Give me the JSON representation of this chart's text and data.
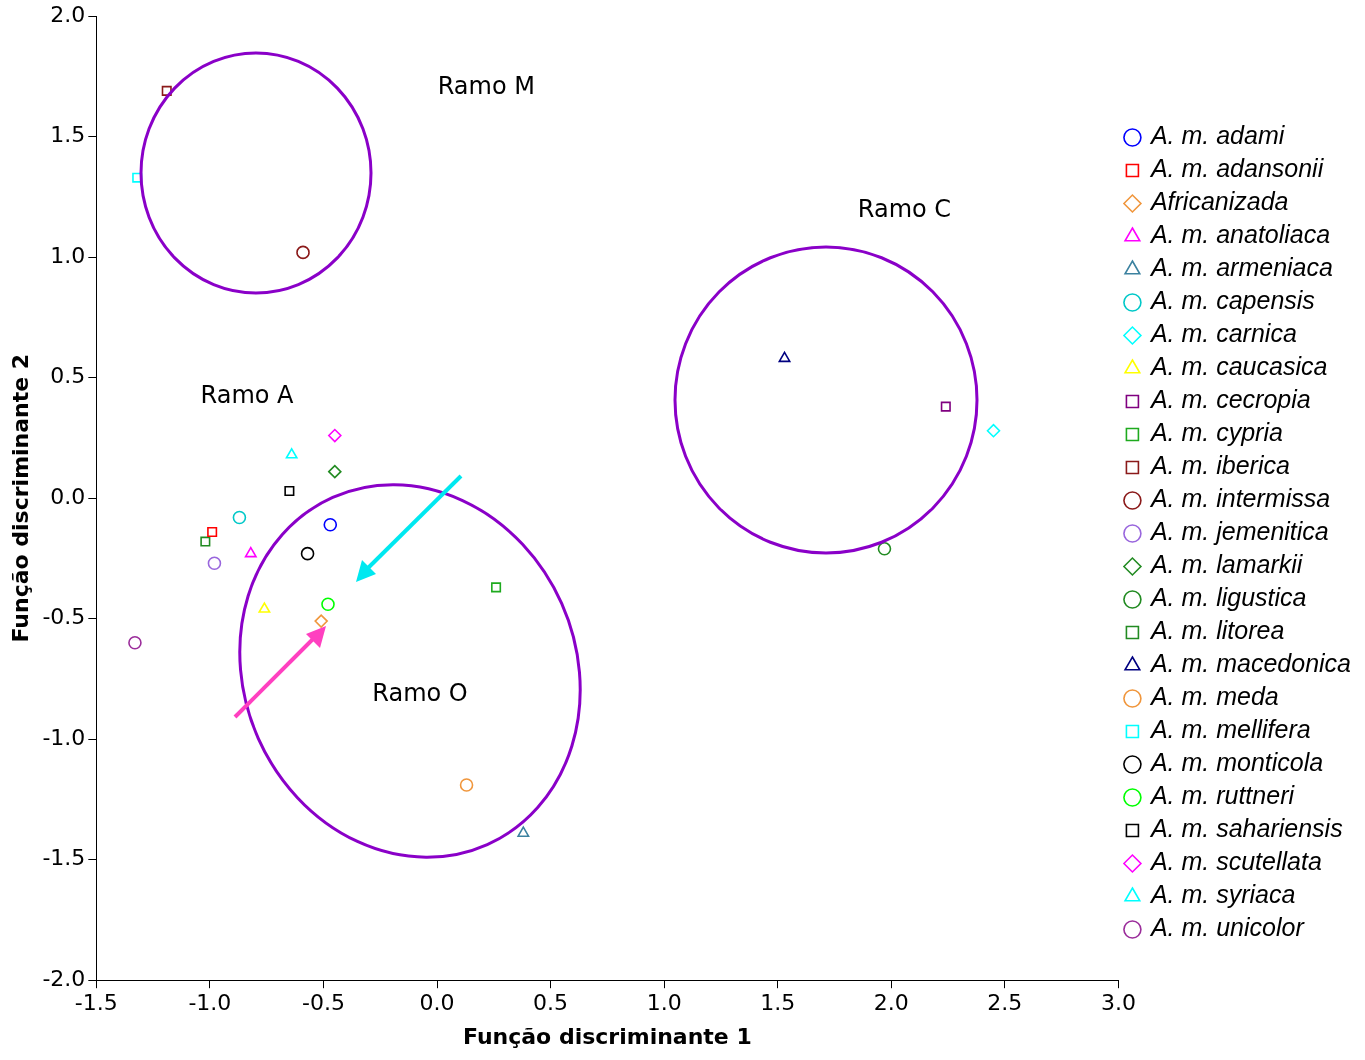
{
  "chart_data": {
    "type": "scatter",
    "xlabel": "Função discriminante 1",
    "ylabel": "Função discriminante 2",
    "xlim": [
      -1.5,
      3.0
    ],
    "xticks": [
      {
        "value": -1.5,
        "label": "-1.5"
      },
      {
        "value": -1,
        "label": "-1.0"
      },
      {
        "value": -0.5,
        "label": "-0.5"
      },
      {
        "value": 0,
        "label": "0.0"
      },
      {
        "value": 0.5,
        "label": "0.5"
      },
      {
        "value": 1,
        "label": "1.0"
      },
      {
        "value": 1.5,
        "label": "1.5"
      },
      {
        "value": 2,
        "label": "2.0"
      },
      {
        "value": 2.5,
        "label": "2.5"
      },
      {
        "value": 3,
        "label": "3.0"
      }
    ],
    "ylim": [
      -2.0,
      2.0
    ],
    "yticks": [
      {
        "value": -2,
        "label": "-2.0"
      },
      {
        "value": -1.5,
        "label": "-1.5"
      },
      {
        "value": -1,
        "label": "-1.0"
      },
      {
        "value": -0.5,
        "label": "-0.5"
      },
      {
        "value": 0,
        "label": "0.0"
      },
      {
        "value": 0.5,
        "label": "0.5"
      },
      {
        "value": 1,
        "label": "1.0"
      },
      {
        "value": 1.5,
        "label": "1.5"
      },
      {
        "value": 2,
        "label": "2.0"
      }
    ],
    "grid": false,
    "legend": "right",
    "annotations": [
      "Ramo M",
      "Ramo C",
      "Ramo A",
      "Ramo O"
    ],
    "series": [
      {
        "name": "A. m. adami",
        "color": "#0000ff",
        "marker": "circle",
        "x": [
          -0.47
        ],
        "values": [
          -0.11
        ]
      },
      {
        "name": "A. m. adansonii",
        "color": "#ff0000",
        "marker": "square",
        "x": [
          -0.99
        ],
        "values": [
          -0.14
        ]
      },
      {
        "name": "Africanizada",
        "color": "#f0963c",
        "marker": "diamond",
        "x": [
          -0.51
        ],
        "values": [
          -0.51
        ]
      },
      {
        "name": "A. m. anatoliaca",
        "color": "#ff00ff",
        "marker": "triangle",
        "x": [
          -0.82
        ],
        "values": [
          -0.23
        ]
      },
      {
        "name": "A. m. armeniaca",
        "color": "#3c82a0",
        "marker": "triangle",
        "x": [
          0.38
        ],
        "values": [
          -1.39
        ]
      },
      {
        "name": "A. m. capensis",
        "color": "#00c8c8",
        "marker": "circle",
        "x": [
          -0.87
        ],
        "values": [
          -0.08
        ]
      },
      {
        "name": "A. m. carnica",
        "color": "#00ffff",
        "marker": "diamond",
        "x": [
          2.45
        ],
        "values": [
          0.28
        ]
      },
      {
        "name": "A. m. caucasica",
        "color": "#ffff00",
        "marker": "triangle",
        "x": [
          -0.76
        ],
        "values": [
          -0.46
        ]
      },
      {
        "name": "A. m. cecropia",
        "color": "#800080",
        "marker": "square",
        "x": [
          2.24
        ],
        "values": [
          0.38
        ]
      },
      {
        "name": "A. m. cypria",
        "color": "#1eaa1e",
        "marker": "square",
        "x": [
          0.26
        ],
        "values": [
          -0.37
        ]
      },
      {
        "name": "A. m. iberica",
        "color": "#8b1a1a",
        "marker": "square",
        "x": [
          -1.19
        ],
        "values": [
          1.69
        ]
      },
      {
        "name": "A. m. intermissa",
        "color": "#8b1a1a",
        "marker": "circle",
        "x": [
          -0.59
        ],
        "values": [
          1.02
        ]
      },
      {
        "name": "A. m. jemenitica",
        "color": "#9966dd",
        "marker": "circle",
        "x": [
          -0.98
        ],
        "values": [
          -0.27
        ]
      },
      {
        "name": "A. m. lamarkii",
        "color": "#228b22",
        "marker": "diamond",
        "x": [
          -0.45
        ],
        "values": [
          0.11
        ]
      },
      {
        "name": "A. m. ligustica",
        "color": "#228b22",
        "marker": "circle",
        "x": [
          1.97
        ],
        "values": [
          -0.21
        ]
      },
      {
        "name": "A. m. litorea",
        "color": "#228b22",
        "marker": "square",
        "x": [
          -1.02
        ],
        "values": [
          -0.18
        ]
      },
      {
        "name": "A. m. macedonica",
        "color": "#000080",
        "marker": "triangle",
        "x": [
          1.53
        ],
        "values": [
          0.58
        ]
      },
      {
        "name": "A. m. meda",
        "color": "#f0963c",
        "marker": "circle",
        "x": [
          0.13
        ],
        "values": [
          -1.19
        ]
      },
      {
        "name": "A. m. mellifera",
        "color": "#00ffff",
        "marker": "square",
        "x": [
          -1.32
        ],
        "values": [
          1.33
        ]
      },
      {
        "name": "A. m. monticola",
        "color": "#000000",
        "marker": "circle",
        "x": [
          -0.57
        ],
        "values": [
          -0.23
        ]
      },
      {
        "name": "A. m. ruttneri",
        "color": "#00ff00",
        "marker": "circle",
        "x": [
          -0.48
        ],
        "values": [
          -0.44
        ]
      },
      {
        "name": "A. m. sahariensis",
        "color": "#000000",
        "marker": "square",
        "x": [
          -0.65
        ],
        "values": [
          0.03
        ]
      },
      {
        "name": "A. m. scutellata",
        "color": "#ff00ff",
        "marker": "diamond",
        "x": [
          -0.45
        ],
        "values": [
          0.26
        ]
      },
      {
        "name": "A. m. syriaca",
        "color": "#00ffff",
        "marker": "triangle",
        "x": [
          -0.64
        ],
        "values": [
          0.18
        ]
      },
      {
        "name": "A. m. unicolor",
        "color": "#9b2d9b",
        "marker": "circle",
        "x": [
          -1.33
        ],
        "values": [
          -0.6
        ]
      }
    ]
  }
}
